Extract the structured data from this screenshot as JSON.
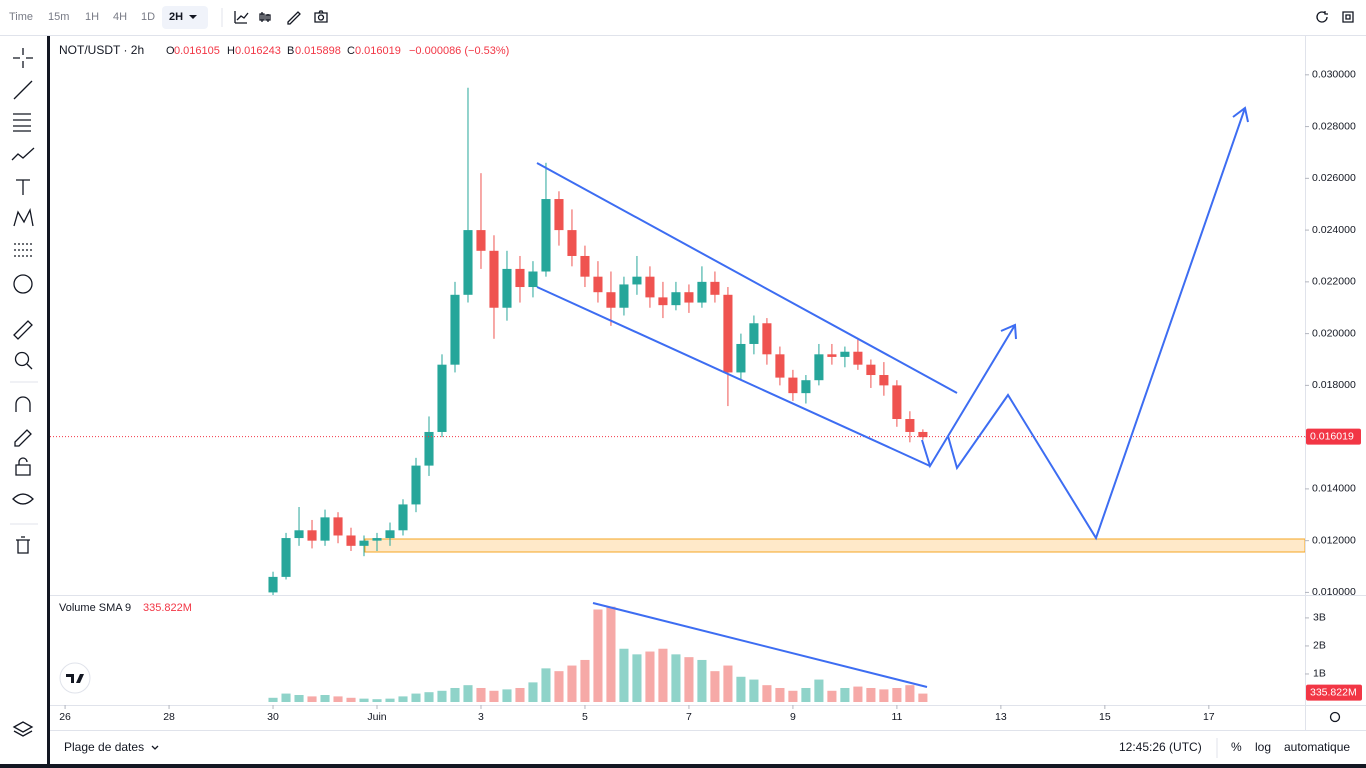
{
  "toolbar": {
    "items": [
      "Time",
      "15m",
      "1H",
      "4H",
      "1D",
      "2H"
    ]
  },
  "header": {
    "symbol": "NOT/USDT · 2h",
    "o_label": "O",
    "open": "0.016105",
    "h_label": "H",
    "high": "0.016243",
    "b_label": "B",
    "low": "0.015898",
    "c_label": "C",
    "close": "0.016019",
    "change": "−0.000086 (−0.53%)"
  },
  "chart_data": [
    {
      "type": "candlestick",
      "x": [
        4,
        4.25,
        4.5,
        4.75,
        5,
        5.25,
        5.5,
        5.75,
        6,
        6.25,
        6.5,
        6.75,
        7,
        7.25,
        7.5,
        7.75,
        8,
        8.25,
        8.5,
        8.75,
        9,
        9.25,
        9.5,
        9.75,
        10,
        10.25,
        10.5,
        10.75,
        11,
        11.25,
        11.5,
        11.75,
        12,
        12.25,
        12.5,
        12.75,
        13,
        13.25,
        13.5,
        13.75,
        14,
        14.25,
        14.5,
        14.75,
        15,
        15.25,
        15.5,
        15.75,
        16,
        16.25,
        16.5
      ],
      "open": [
        0.01,
        0.0106,
        0.0121,
        0.0124,
        0.012,
        0.0129,
        0.0122,
        0.0118,
        0.012,
        0.0121,
        0.0124,
        0.0134,
        0.0149,
        0.0162,
        0.0188,
        0.0215,
        0.024,
        0.0232,
        0.021,
        0.0225,
        0.0218,
        0.0224,
        0.0252,
        0.024,
        0.023,
        0.0222,
        0.0216,
        0.021,
        0.0219,
        0.0222,
        0.0214,
        0.0211,
        0.0216,
        0.0212,
        0.022,
        0.0215,
        0.0185,
        0.0196,
        0.0204,
        0.0192,
        0.0183,
        0.0177,
        0.0182,
        0.0192,
        0.0191,
        0.0193,
        0.0188,
        0.0184,
        0.018,
        0.0167,
        0.0162
      ],
      "high": [
        0.0108,
        0.0123,
        0.0133,
        0.0128,
        0.0132,
        0.0131,
        0.0125,
        0.0122,
        0.0123,
        0.0127,
        0.0136,
        0.0152,
        0.0168,
        0.0192,
        0.022,
        0.0295,
        0.0262,
        0.0238,
        0.0232,
        0.023,
        0.0228,
        0.0266,
        0.0255,
        0.0248,
        0.0234,
        0.0228,
        0.0224,
        0.0222,
        0.023,
        0.0226,
        0.022,
        0.022,
        0.0219,
        0.0226,
        0.0224,
        0.0218,
        0.02,
        0.0207,
        0.0206,
        0.0195,
        0.0186,
        0.0184,
        0.0196,
        0.0196,
        0.0195,
        0.0198,
        0.019,
        0.0189,
        0.0182,
        0.017,
        0.0163
      ],
      "low": [
        0.0099,
        0.0105,
        0.0118,
        0.0117,
        0.0118,
        0.0119,
        0.0116,
        0.0114,
        0.0116,
        0.0118,
        0.0122,
        0.0131,
        0.0145,
        0.016,
        0.0185,
        0.0212,
        0.0225,
        0.0198,
        0.0205,
        0.0212,
        0.0214,
        0.0222,
        0.0234,
        0.0226,
        0.0218,
        0.0212,
        0.0203,
        0.0207,
        0.0215,
        0.021,
        0.0206,
        0.0209,
        0.0208,
        0.021,
        0.0212,
        0.0172,
        0.0182,
        0.0192,
        0.0188,
        0.018,
        0.0174,
        0.0173,
        0.018,
        0.0188,
        0.0187,
        0.0186,
        0.0179,
        0.0176,
        0.0164,
        0.0158,
        0.0159
      ],
      "close": [
        0.0106,
        0.0121,
        0.0124,
        0.012,
        0.0129,
        0.0122,
        0.0118,
        0.012,
        0.0121,
        0.0124,
        0.0134,
        0.0149,
        0.0162,
        0.0188,
        0.0215,
        0.024,
        0.0232,
        0.021,
        0.0225,
        0.0218,
        0.0224,
        0.0252,
        0.024,
        0.023,
        0.0222,
        0.0216,
        0.021,
        0.0219,
        0.0222,
        0.0214,
        0.0211,
        0.0216,
        0.0212,
        0.022,
        0.0215,
        0.0185,
        0.0196,
        0.0204,
        0.0192,
        0.0183,
        0.0177,
        0.0182,
        0.0192,
        0.0191,
        0.0193,
        0.0188,
        0.0184,
        0.018,
        0.0167,
        0.0162,
        0.016
      ],
      "up_color": "#26a69a",
      "down_color": "#ef5350",
      "xlim": [
        -0.29,
        23.85
      ],
      "ylim": [
        0.0099,
        0.0315
      ],
      "xticks": [
        {
          "value": 0,
          "label": "26"
        },
        {
          "value": 2,
          "label": "28"
        },
        {
          "value": 4,
          "label": "30"
        },
        {
          "value": 6,
          "label": "Juin"
        },
        {
          "value": 8,
          "label": "3"
        },
        {
          "value": 10,
          "label": "5"
        },
        {
          "value": 12,
          "label": "7"
        },
        {
          "value": 14,
          "label": "9"
        },
        {
          "value": 16,
          "label": "11"
        },
        {
          "value": 18,
          "label": "13"
        },
        {
          "value": 20,
          "label": "15"
        },
        {
          "value": 22,
          "label": "17"
        }
      ],
      "yticks": [
        {
          "value": 0.01,
          "label": "0.010000"
        },
        {
          "value": 0.012,
          "label": "0.012000"
        },
        {
          "value": 0.014,
          "label": "0.014000"
        },
        {
          "value": 0.016,
          "label": "0.016000"
        },
        {
          "value": 0.018,
          "label": "0.018000"
        },
        {
          "value": 0.02,
          "label": "0.020000"
        },
        {
          "value": 0.022,
          "label": "0.022000"
        },
        {
          "value": 0.024,
          "label": "0.024000"
        },
        {
          "value": 0.026,
          "label": "0.026000"
        },
        {
          "value": 0.028,
          "label": "0.028000"
        },
        {
          "value": 0.03,
          "label": "0.030000"
        }
      ],
      "last_price": 0.016019,
      "last_price_color": "#f23645"
    },
    {
      "type": "bar",
      "title": "Volume SMA 9",
      "values": [
        0.15,
        0.3,
        0.25,
        0.2,
        0.25,
        0.2,
        0.15,
        0.12,
        0.1,
        0.12,
        0.2,
        0.3,
        0.35,
        0.4,
        0.5,
        0.6,
        0.5,
        0.4,
        0.45,
        0.5,
        0.7,
        1.2,
        1.1,
        1.3,
        1.5,
        3.3,
        3.4,
        1.9,
        1.7,
        1.8,
        1.9,
        1.7,
        1.6,
        1.5,
        1.1,
        1.3,
        0.9,
        0.8,
        0.6,
        0.5,
        0.4,
        0.5,
        0.8,
        0.4,
        0.5,
        0.55,
        0.5,
        0.45,
        0.5,
        0.6,
        0.3
      ],
      "up_color": "#8fd3c9",
      "down_color": "#f6a9a7",
      "ylim": [
        0,
        3.71
      ],
      "yticks": [
        {
          "value": 1,
          "label": "1B"
        },
        {
          "value": 2,
          "label": "2B"
        },
        {
          "value": 3,
          "label": "3B"
        }
      ],
      "sma": {
        "value": 0.335822,
        "label": "335.822M"
      },
      "sma_color": "#f23645"
    }
  ],
  "footer": {
    "range": "Plage de dates",
    "clock": "12:45:26 (UTC)",
    "percent": "%",
    "log": "log",
    "auto": "automatique"
  }
}
